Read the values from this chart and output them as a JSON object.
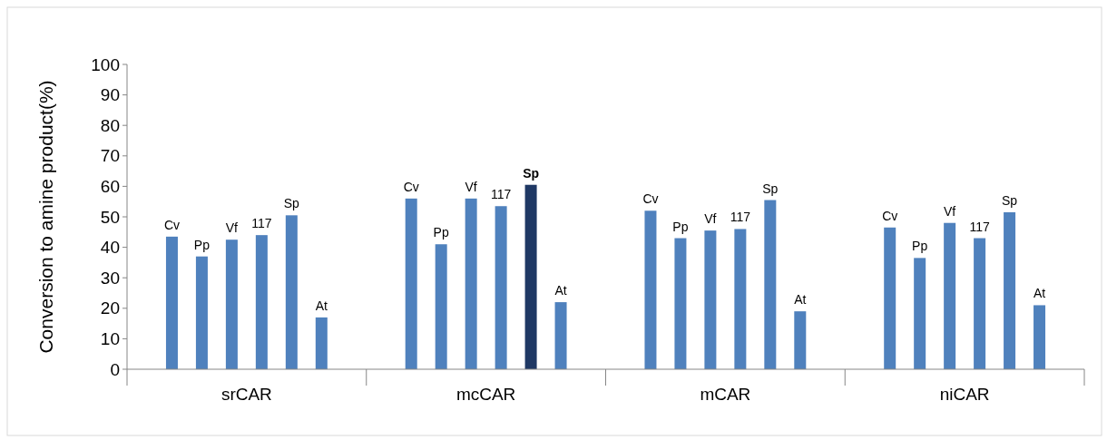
{
  "chart_data": {
    "type": "bar",
    "ylabel": "Conversion to amine product(%)",
    "categories": [
      "srCAR",
      "mcCAR",
      "mCAR",
      "niCAR"
    ],
    "ylim": [
      0,
      100
    ],
    "yticks": [
      0,
      10,
      20,
      30,
      40,
      50,
      60,
      70,
      80,
      90,
      100
    ],
    "grid": false,
    "series": [
      {
        "name": "Cv",
        "color": "#4f81bd",
        "values": [
          43.5,
          56,
          52,
          46.5
        ]
      },
      {
        "name": "Pp",
        "color": "#4f81bd",
        "values": [
          37,
          41,
          43,
          36.5
        ]
      },
      {
        "name": "Vf",
        "color": "#4f81bd",
        "values": [
          42.5,
          56,
          45.5,
          48
        ]
      },
      {
        "name": "117",
        "color": "#4f81bd",
        "values": [
          44,
          53.5,
          46,
          43
        ]
      },
      {
        "name": "Sp",
        "color": "#4f81bd",
        "colors": [
          "#4f81bd",
          "#1f3864",
          "#4f81bd",
          "#4f81bd"
        ],
        "values": [
          50.5,
          60.5,
          55.5,
          51.5
        ]
      },
      {
        "name": "At",
        "color": "#4f81bd",
        "values": [
          17,
          22,
          19,
          21
        ]
      }
    ]
  }
}
